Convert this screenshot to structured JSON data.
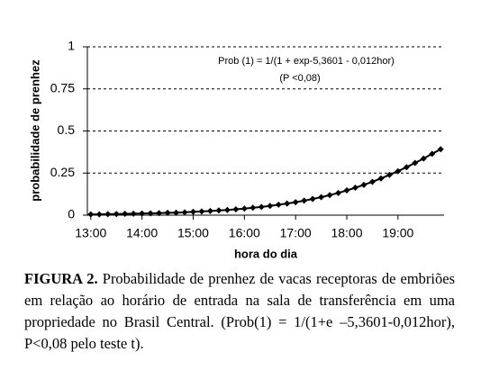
{
  "chart_data": {
    "type": "line",
    "y_label": "probabilidade de prenhez",
    "x_label": "hora do dia",
    "annotations": [
      "Prob (1) = 1/(1 + exp-5,3601 - 0,012hor)",
      "(P <0,08)"
    ],
    "x": [
      0,
      10,
      20,
      30,
      40,
      50,
      60,
      70,
      80,
      90,
      100,
      110,
      120,
      130,
      140,
      150,
      160,
      170,
      180,
      190,
      200,
      210,
      220,
      230,
      240,
      250,
      260,
      270,
      280,
      290,
      300,
      310,
      320,
      330,
      340,
      350,
      360,
      370,
      380,
      390,
      400,
      410
    ],
    "series": [
      {
        "color": "#000000",
        "values": [
          0.005,
          0.005,
          0.006,
          0.007,
          0.008,
          0.009,
          0.01,
          0.011,
          0.012,
          0.014,
          0.015,
          0.017,
          0.02,
          0.022,
          0.025,
          0.028,
          0.031,
          0.035,
          0.039,
          0.044,
          0.049,
          0.055,
          0.062,
          0.069,
          0.077,
          0.086,
          0.096,
          0.107,
          0.119,
          0.132,
          0.147,
          0.163,
          0.18,
          0.198,
          0.218,
          0.239,
          0.261,
          0.285,
          0.31,
          0.336,
          0.364,
          0.392
        ]
      }
    ],
    "xlim": [
      -4,
      414
    ],
    "xticks": [
      {
        "value": 0,
        "label": "13:00"
      },
      {
        "value": 60,
        "label": "14:00"
      },
      {
        "value": 120,
        "label": "15:00"
      },
      {
        "value": 180,
        "label": "16:00"
      },
      {
        "value": 240,
        "label": "17:00"
      },
      {
        "value": 300,
        "label": "18:00"
      },
      {
        "value": 360,
        "label": "19:00"
      }
    ],
    "ylim": [
      0,
      1
    ],
    "yticks": [
      0,
      0.25,
      0.5,
      0.75,
      1
    ],
    "grid": true
  },
  "caption": {
    "label": "FIGURA 2.",
    "text": "Probabilidade de prenhez de vacas receptoras de embriões em relação ao horário de entrada na sala de transferência em uma propriedade no Brasil Central. (Prob(1) = 1/(1+e –5,3601-0,012hor), P<0,08 pelo teste t)."
  }
}
